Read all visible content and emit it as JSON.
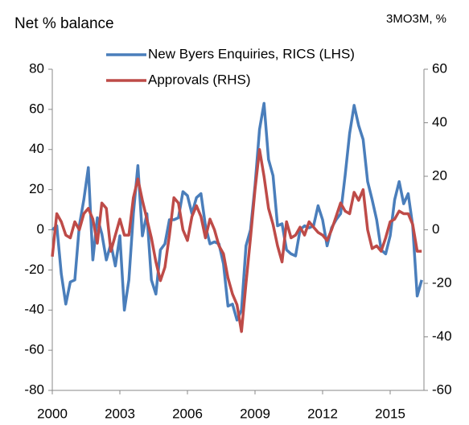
{
  "chart_data": {
    "type": "line",
    "title": "Net % balance",
    "subtitle": "3MO3M, %",
    "x": [
      2000,
      2000.2,
      2000.4,
      2000.6,
      2000.8,
      2001,
      2001.2,
      2001.4,
      2001.6,
      2001.8,
      2002,
      2002.2,
      2002.4,
      2002.6,
      2002.8,
      2003,
      2003.2,
      2003.4,
      2003.6,
      2003.8,
      2004,
      2004.2,
      2004.4,
      2004.6,
      2004.8,
      2005,
      2005.2,
      2005.4,
      2005.6,
      2005.8,
      2006,
      2006.2,
      2006.4,
      2006.6,
      2006.8,
      2007,
      2007.2,
      2007.4,
      2007.6,
      2007.8,
      2008,
      2008.2,
      2008.4,
      2008.6,
      2008.8,
      2009,
      2009.2,
      2009.4,
      2009.6,
      2009.8,
      2010,
      2010.2,
      2010.4,
      2010.6,
      2010.8,
      2011,
      2011.2,
      2011.4,
      2011.6,
      2011.8,
      2012,
      2012.2,
      2012.4,
      2012.6,
      2012.8,
      2013,
      2013.2,
      2013.4,
      2013.6,
      2013.8,
      2014,
      2014.2,
      2014.4,
      2014.6,
      2014.8,
      2015,
      2015.2,
      2015.4,
      2015.6,
      2015.8,
      2016,
      2016.2,
      2016.4
    ],
    "xlim": [
      2000,
      2016.5
    ],
    "xticks": [
      2000,
      2003,
      2006,
      2009,
      2012,
      2015
    ],
    "ylim": [
      -80,
      80
    ],
    "yticks": [
      -80,
      -60,
      -40,
      -20,
      0,
      20,
      40,
      60,
      80
    ],
    "y2lim": [
      -60,
      60
    ],
    "y2ticks": [
      -60,
      -40,
      -20,
      0,
      20,
      40,
      60
    ],
    "legend": "top",
    "series": [
      {
        "name": "New Byers Enquiries, RICS (LHS)",
        "color": "#4a7ebb",
        "axis": "y",
        "values": [
          0,
          2,
          -22,
          -37,
          -26,
          -25,
          2,
          15,
          31,
          -15,
          6,
          -2,
          -15,
          -7,
          -18,
          -3,
          -40,
          -25,
          8,
          32,
          -3,
          8,
          -25,
          -32,
          -10,
          -7,
          5,
          5,
          6,
          19,
          17,
          8,
          16,
          18,
          2,
          -7,
          -6,
          -7,
          -17,
          -38,
          -37,
          -45,
          -40,
          -8,
          0,
          22,
          50,
          63,
          35,
          27,
          2,
          3,
          -10,
          -12,
          -13,
          0,
          2,
          1,
          2,
          12,
          5,
          -8,
          1,
          5,
          8,
          27,
          48,
          62,
          52,
          45,
          24,
          15,
          5,
          -10,
          -12,
          -3,
          15,
          24,
          13,
          18,
          2,
          -33,
          -25
        ]
      },
      {
        "name": "Approvals (RHS)",
        "color": "#be4b48",
        "axis": "y2",
        "values": [
          -10,
          6,
          3,
          -2,
          -3,
          3,
          0,
          6,
          8,
          4,
          -5,
          10,
          8,
          -8,
          -2,
          4,
          -2,
          -2,
          12,
          19,
          11,
          4,
          -3,
          -12,
          -19,
          -14,
          -2,
          12,
          10,
          0,
          -4,
          5,
          9,
          5,
          -3,
          4,
          0,
          -6,
          -9,
          -18,
          -24,
          -28,
          -38,
          -20,
          -3,
          15,
          30,
          20,
          8,
          2,
          -6,
          -12,
          3,
          -3,
          -2,
          1,
          -2,
          3,
          1,
          -1,
          -2,
          -4,
          0,
          5,
          10,
          7,
          6,
          14,
          11,
          15,
          0,
          -7,
          -6,
          -8,
          -3,
          3,
          4,
          7,
          6,
          6,
          2,
          -8,
          -8
        ]
      }
    ]
  }
}
